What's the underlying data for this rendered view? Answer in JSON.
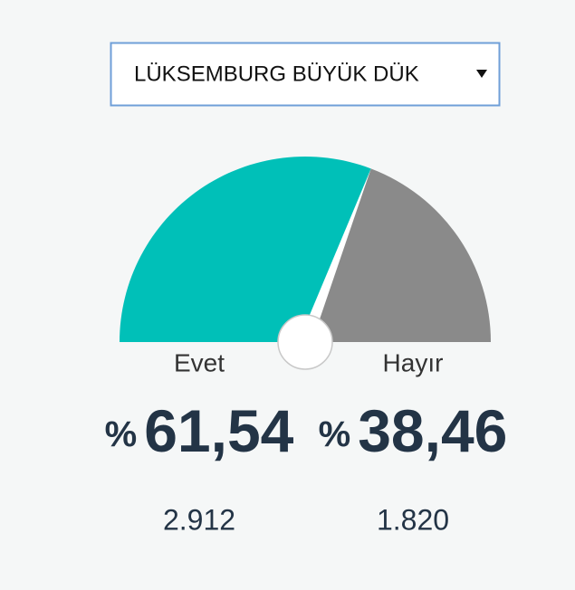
{
  "selector": {
    "label": "LÜKSEMBURG BÜYÜK DÜK"
  },
  "chart_data": {
    "type": "gauge",
    "categories": [
      "Evet",
      "Hayır"
    ],
    "values": [
      61.54,
      38.46
    ],
    "value_labels": [
      "61,54",
      "38,46"
    ],
    "unit": "%",
    "counts": [
      2912,
      1820
    ],
    "count_labels": [
      "2.912",
      "1.820"
    ],
    "colors": [
      "#00c0b8",
      "#8a8a8a"
    ]
  }
}
